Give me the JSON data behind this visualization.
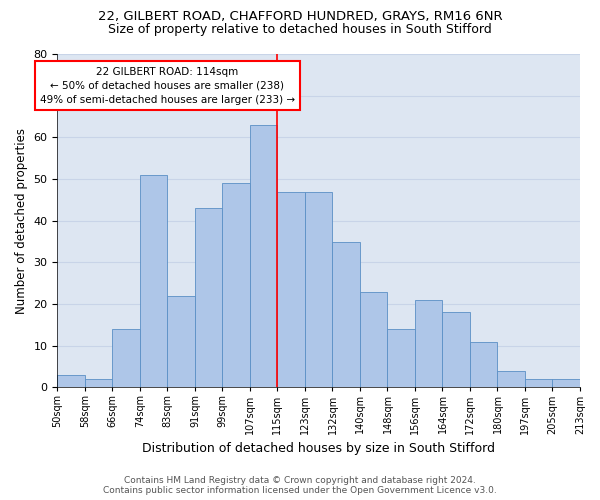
{
  "title1": "22, GILBERT ROAD, CHAFFORD HUNDRED, GRAYS, RM16 6NR",
  "title2": "Size of property relative to detached houses in South Stifford",
  "xlabel": "Distribution of detached houses by size in South Stifford",
  "ylabel": "Number of detached properties",
  "footer1": "Contains HM Land Registry data © Crown copyright and database right 2024.",
  "footer2": "Contains public sector information licensed under the Open Government Licence v3.0.",
  "annotation_line1": "22 GILBERT ROAD: 114sqm",
  "annotation_line2": "← 50% of detached houses are smaller (238)",
  "annotation_line3": "49% of semi-detached houses are larger (233) →",
  "bar_heights": [
    3,
    2,
    14,
    51,
    22,
    43,
    49,
    63,
    47,
    47,
    35,
    23,
    14,
    21,
    18,
    11,
    4,
    2,
    2
  ],
  "bin_labels": [
    "50sqm",
    "58sqm",
    "66sqm",
    "74sqm",
    "83sqm",
    "91sqm",
    "99sqm",
    "107sqm",
    "115sqm",
    "123sqm",
    "132sqm",
    "140sqm",
    "148sqm",
    "156sqm",
    "164sqm",
    "172sqm",
    "180sqm",
    "197sqm",
    "205sqm",
    "213sqm"
  ],
  "bar_color": "#aec6e8",
  "bar_edge_color": "#5a8fc5",
  "vline_color": "red",
  "ylim": [
    0,
    80
  ],
  "yticks": [
    0,
    10,
    20,
    30,
    40,
    50,
    60,
    70,
    80
  ],
  "grid_color": "#c8d4e8",
  "bg_color": "#dde6f2",
  "fig_bg": "#ffffff",
  "title1_fontsize": 9.5,
  "title2_fontsize": 9,
  "xlabel_fontsize": 9,
  "ylabel_fontsize": 8.5,
  "annot_fontsize": 7.5,
  "footer_fontsize": 6.5
}
